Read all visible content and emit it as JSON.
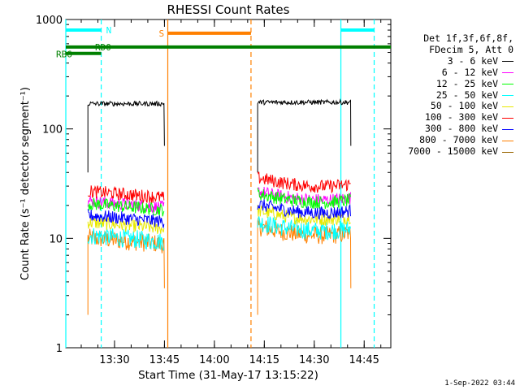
{
  "chart_data": {
    "type": "line",
    "title": "RHESSI Count Rates",
    "xlabel": "Start Time (31-May-17 13:15:22)",
    "ylabel": "Count Rate (s⁻¹ detector segment⁻¹)",
    "y_scale": "log",
    "ylim": [
      1,
      1000
    ],
    "y_ticks": [
      1,
      10,
      100,
      1000
    ],
    "y_tick_labels": [
      "1",
      "10",
      "100",
      "1000"
    ],
    "x_range": [
      "13:15:22",
      "14:53:00"
    ],
    "x_tick_labels": [
      "13:30",
      "13:45",
      "14:00",
      "14:15",
      "14:30",
      "14:45"
    ],
    "legend_header": [
      "Det 1f,3f,6f,8f,",
      "FDecim 5, Att 0"
    ],
    "legend_position": "right, outside plot",
    "segments": [
      [
        "13:22:00",
        "13:45:00"
      ],
      [
        "14:13:00",
        "14:41:00"
      ]
    ],
    "series": [
      {
        "name": "3 - 6 keV",
        "color": "#000000",
        "values": [
          170,
          175
        ]
      },
      {
        "name": "6 - 12 keV",
        "color": "#ff00ff",
        "values": [
          19.5,
          21
        ]
      },
      {
        "name": "12 - 25 keV",
        "color": "#00ff00",
        "values": [
          18.5,
          20
        ]
      },
      {
        "name": "25 - 50 keV",
        "color": "#00ffff",
        "values": [
          9.5,
          11
        ]
      },
      {
        "name": "50 - 100 keV",
        "color": "#e8e800",
        "values": [
          12.5,
          14
        ]
      },
      {
        "name": "100 - 300 keV",
        "color": "#ff0000",
        "values": [
          24,
          28
        ]
      },
      {
        "name": "300 - 800 keV",
        "color": "#0000ff",
        "values": [
          14.5,
          16
        ]
      },
      {
        "name": "800 - 7000 keV",
        "color": "#ff8000",
        "values": [
          9,
          10
        ]
      },
      {
        "name": "7000 - 15000 keV",
        "color": "#996600",
        "values": [
          null,
          null
        ]
      }
    ],
    "flags": [
      {
        "label": "N",
        "color": "#00ffff",
        "value": 800,
        "intervals": [
          [
            "13:15:22",
            "13:26:00"
          ],
          [
            "14:38:00",
            "14:48:00"
          ]
        ]
      },
      {
        "label": "S",
        "color": "#ff8000",
        "value": 750,
        "intervals": [
          [
            "13:46:00",
            "14:11:00"
          ]
        ]
      },
      {
        "label": "RD0",
        "color": "#008000",
        "value": 560,
        "intervals": [
          [
            "13:15:22",
            "14:53:00"
          ]
        ]
      },
      {
        "label": "RB6",
        "color": "#008000",
        "value": 490,
        "intervals": [
          [
            "13:15:22",
            "13:26:00"
          ]
        ]
      }
    ],
    "vertical_markers": [
      {
        "color": "#00ffff",
        "time": "13:15:22",
        "style": "solid"
      },
      {
        "color": "#00ffff",
        "time": "13:26:00",
        "style": "dashed"
      },
      {
        "color": "#ff8000",
        "time": "13:46:00",
        "style": "solid"
      },
      {
        "color": "#ff8000",
        "time": "14:11:00",
        "style": "dashed"
      },
      {
        "color": "#00ffff",
        "time": "14:38:00",
        "style": "solid"
      },
      {
        "color": "#00ffff",
        "time": "14:48:00",
        "style": "dashed"
      }
    ]
  },
  "footer": {
    "timestamp": "1-Sep-2022 03:44"
  }
}
